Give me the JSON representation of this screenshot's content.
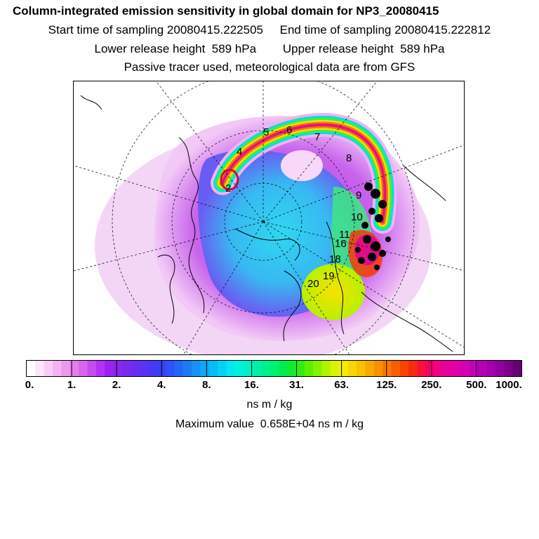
{
  "header": {
    "title": "Column-integrated emission sensitivity in global domain for NP3_20080415",
    "sampling": "Start time of sampling 20080415.222505     End time of sampling 20080415.222812",
    "release": "Lower release height  589 hPa        Upper release height  589 hPa",
    "tracer": "Passive tracer used, meteorological data are from GFS"
  },
  "map": {
    "trajectory_labels": [
      "2",
      "4",
      "5",
      "6",
      "7",
      "8",
      "9",
      "10",
      "11",
      "16",
      "18",
      "19",
      "20"
    ]
  },
  "colorbar": {
    "tick_labels": [
      "0.",
      "1.",
      "2.",
      "4.",
      "8.",
      "16.",
      "31.",
      "63.",
      "125.",
      "250.",
      "500.",
      "1000."
    ],
    "colors": [
      "#ffffff",
      "#fbe6fb",
      "#f7cdf7",
      "#f2b3f2",
      "#ec99ec",
      "#e47fe8",
      "#d865ec",
      "#c64cef",
      "#b233f2",
      "#9b22f2",
      "#8c26ef",
      "#7a2aeb",
      "#6a2ef0",
      "#5a33f3",
      "#4838f5",
      "#3a3ff6",
      "#2e52f5",
      "#2466f6",
      "#1b7cf6",
      "#1492f6",
      "#0ea8f6",
      "#08bdf6",
      "#03d3f6",
      "#00e8f2",
      "#00f2dd",
      "#00f2c4",
      "#00f2aa",
      "#00f290",
      "#00f070",
      "#00ee50",
      "#10ec30",
      "#2fee10",
      "#5cf000",
      "#86f200",
      "#b0f400",
      "#d8f400",
      "#f2ee00",
      "#f6d800",
      "#f8c200",
      "#f8aa00",
      "#f89200",
      "#f87800",
      "#f85e00",
      "#f84400",
      "#f82a10",
      "#f8103a",
      "#f4006a",
      "#ee0088",
      "#e8009a",
      "#e000a8",
      "#d400b4",
      "#c400b8",
      "#b400b4",
      "#a400aa",
      "#90009c",
      "#7a0088",
      "#640072"
    ]
  },
  "units": "ns m / kg",
  "max_value": "Maximum value  0.658E+04 ns m / kg"
}
